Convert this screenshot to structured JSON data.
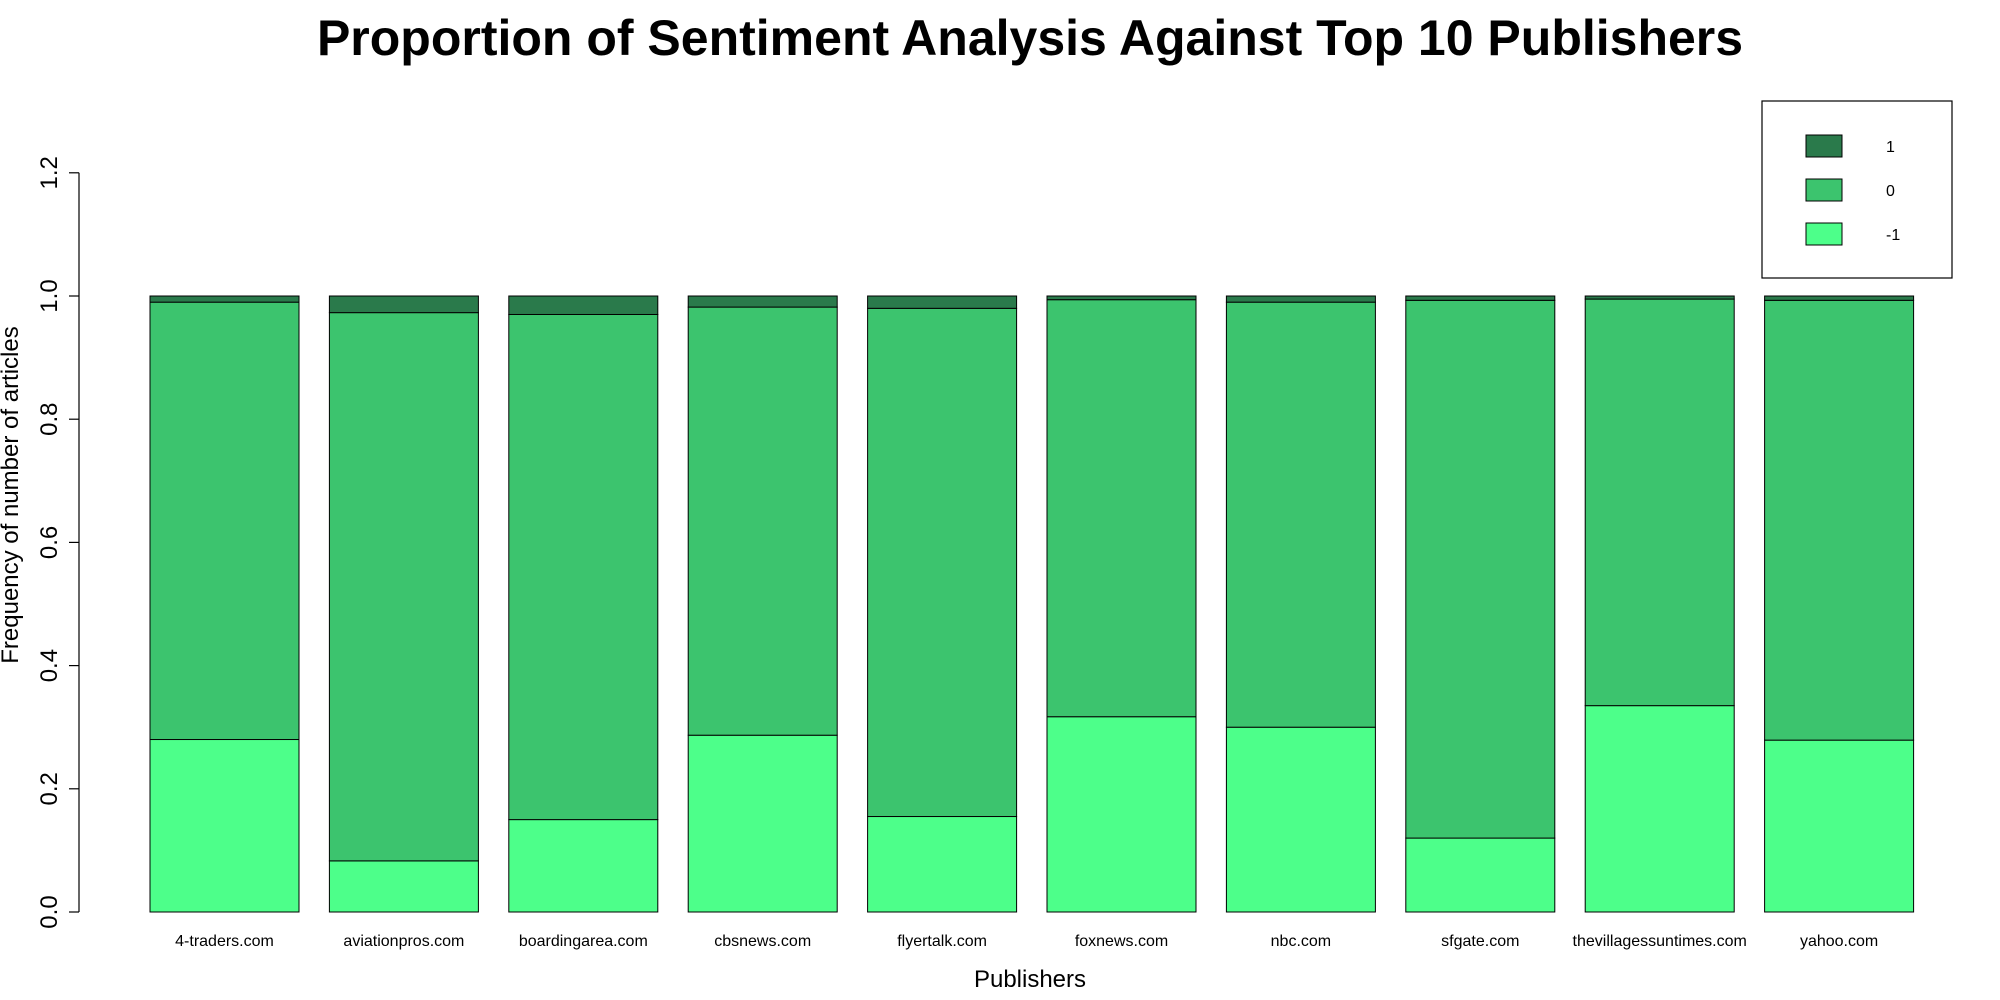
{
  "chart_data": {
    "type": "bar",
    "stacked": true,
    "title": "Proportion of Sentiment Analysis Against Top 10 Publishers",
    "xlabel": "Publishers",
    "ylabel": "Frequency of number of articles",
    "ylim": [
      0,
      1.2
    ],
    "yticks": [
      0.0,
      0.2,
      0.4,
      0.6,
      0.8,
      1.0,
      1.2
    ],
    "ytick_labels": [
      "0.0",
      "0.2",
      "0.4",
      "0.6",
      "0.8",
      "1.0",
      "1.2"
    ],
    "grid": false,
    "legend_position": "top-right",
    "categories": [
      "4-traders.com",
      "aviationpros.com",
      "boardingarea.com",
      "cbsnews.com",
      "flyertalk.com",
      "foxnews.com",
      "nbc.com",
      "sfgate.com",
      "thevillagessuntimes.com",
      "yahoo.com"
    ],
    "series": [
      {
        "name": "-1",
        "color": "#4dff8a",
        "values": [
          0.28,
          0.083,
          0.15,
          0.287,
          0.155,
          0.317,
          0.3,
          0.12,
          0.335,
          0.279
        ]
      },
      {
        "name": "0",
        "color": "#3cc46e",
        "values": [
          0.71,
          0.89,
          0.82,
          0.695,
          0.825,
          0.677,
          0.69,
          0.873,
          0.66,
          0.714
        ]
      },
      {
        "name": "1",
        "color": "#2a7a4b",
        "values": [
          0.01,
          0.027,
          0.03,
          0.018,
          0.02,
          0.006,
          0.01,
          0.007,
          0.005,
          0.007
        ]
      }
    ],
    "legend_order": [
      "1",
      "0",
      "-1"
    ]
  }
}
